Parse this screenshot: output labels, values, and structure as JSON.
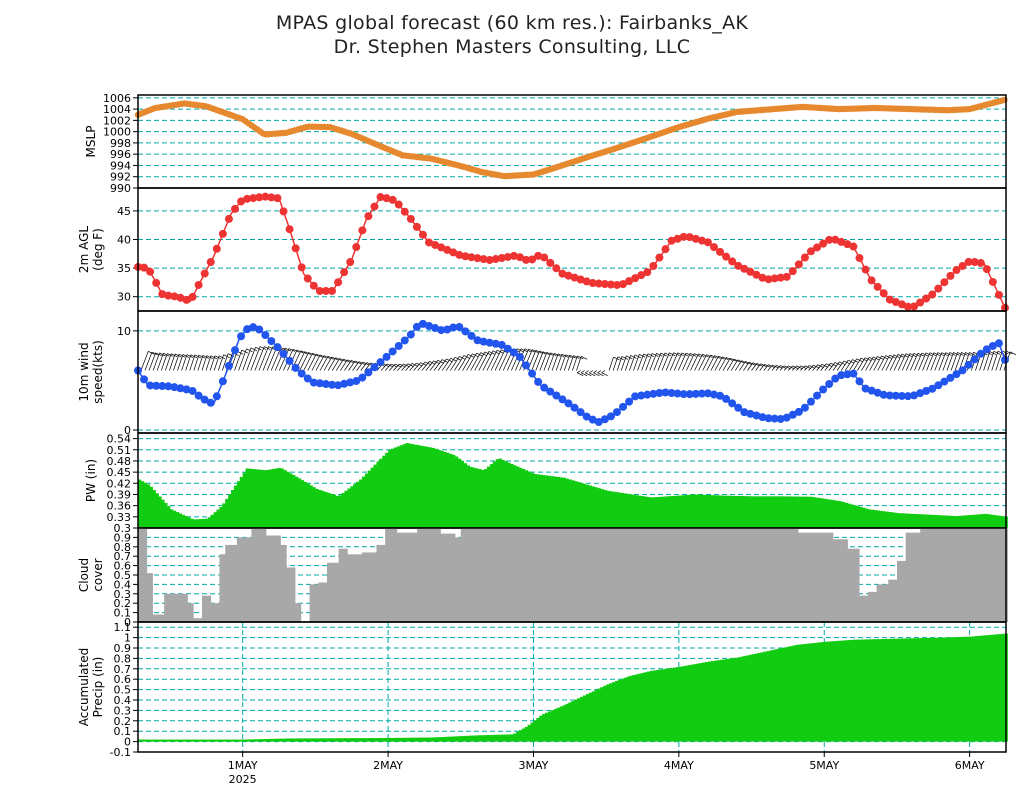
{
  "title": "MPAS global forecast (60 km res.): Fairbanks_AK",
  "subtitle": "Dr. Stephen Masters Consulting, LLC",
  "x_axis": {
    "ticks": [
      {
        "x": 1.0,
        "label": "1MAY",
        "sub": "2025"
      },
      {
        "x": 2.0,
        "label": "2MAY",
        "sub": ""
      },
      {
        "x": 3.0,
        "label": "3MAY",
        "sub": ""
      },
      {
        "x": 4.0,
        "label": "4MAY",
        "sub": ""
      },
      {
        "x": 5.0,
        "label": "5MAY",
        "sub": ""
      },
      {
        "x": 6.0,
        "label": "6MAY",
        "sub": ""
      }
    ],
    "xmin": 0.28,
    "xmax": 6.25
  },
  "colors": {
    "mslp": "#e6892e",
    "temp": "#ee3333",
    "wind": "#2255ee",
    "pw": "#11cc11",
    "cloud": "#a8a8a8",
    "precip": "#11cc11",
    "grid": "#00aaaa"
  },
  "chart_data": [
    {
      "panel": "mslp",
      "type": "line",
      "ylabel": [
        "MSLP"
      ],
      "ylim": [
        990,
        1006.5
      ],
      "yticks": [
        990,
        992,
        994,
        996,
        998,
        1000,
        1002,
        1004,
        1006
      ],
      "ytick_labels": [
        "990",
        "992",
        "994",
        "996",
        "998",
        "1000",
        "1002",
        "1004",
        "1006"
      ],
      "points": [
        [
          0.28,
          1003
        ],
        [
          0.4,
          1004.2
        ],
        [
          0.6,
          1005
        ],
        [
          0.75,
          1004.5
        ],
        [
          1.0,
          1002.2
        ],
        [
          1.15,
          999.5
        ],
        [
          1.3,
          999.8
        ],
        [
          1.45,
          1000.9
        ],
        [
          1.6,
          1000.8
        ],
        [
          1.75,
          999.6
        ],
        [
          1.95,
          997.4
        ],
        [
          2.1,
          995.8
        ],
        [
          2.3,
          995.2
        ],
        [
          2.5,
          993.9
        ],
        [
          2.65,
          992.8
        ],
        [
          2.8,
          992.1
        ],
        [
          3.0,
          992.4
        ],
        [
          3.15,
          993.6
        ],
        [
          3.35,
          995.3
        ],
        [
          3.55,
          996.9
        ],
        [
          3.75,
          998.6
        ],
        [
          4.0,
          1000.8
        ],
        [
          4.2,
          1002.3
        ],
        [
          4.4,
          1003.5
        ],
        [
          4.6,
          1003.9
        ],
        [
          4.85,
          1004.4
        ],
        [
          5.1,
          1004
        ],
        [
          5.35,
          1004.2
        ],
        [
          5.6,
          1004
        ],
        [
          5.85,
          1003.8
        ],
        [
          6.0,
          1004
        ],
        [
          6.25,
          1005.7
        ]
      ]
    },
    {
      "panel": "temp",
      "type": "line",
      "ylabel": [
        "2m AGL",
        "(deg F)"
      ],
      "ylim": [
        27.5,
        49
      ],
      "yticks": [
        30,
        35,
        40,
        45
      ],
      "ytick_labels": [
        "30",
        "35",
        "40",
        "45"
      ],
      "points": [
        [
          0.28,
          35.2
        ],
        [
          0.35,
          35
        ],
        [
          0.45,
          30.3
        ],
        [
          0.55,
          30
        ],
        [
          0.64,
          29.2
        ],
        [
          0.7,
          32.2
        ],
        [
          0.8,
          37
        ],
        [
          0.92,
          44.5
        ],
        [
          1.0,
          47
        ],
        [
          1.15,
          47.5
        ],
        [
          1.25,
          47.2
        ],
        [
          1.32,
          42
        ],
        [
          1.42,
          34
        ],
        [
          1.52,
          31
        ],
        [
          1.62,
          31
        ],
        [
          1.75,
          36.5
        ],
        [
          1.85,
          43.5
        ],
        [
          1.95,
          47.5
        ],
        [
          2.05,
          46.8
        ],
        [
          2.15,
          43.8
        ],
        [
          2.28,
          39.5
        ],
        [
          2.5,
          37.2
        ],
        [
          2.7,
          36.4
        ],
        [
          2.88,
          37.2
        ],
        [
          2.97,
          36.2
        ],
        [
          3.05,
          37.4
        ],
        [
          3.2,
          34
        ],
        [
          3.4,
          32.4
        ],
        [
          3.6,
          32
        ],
        [
          3.8,
          34.5
        ],
        [
          3.95,
          39.8
        ],
        [
          4.05,
          40.6
        ],
        [
          4.2,
          39.5
        ],
        [
          4.4,
          35.5
        ],
        [
          4.6,
          33
        ],
        [
          4.75,
          33.5
        ],
        [
          4.9,
          37.8
        ],
        [
          5.05,
          40.2
        ],
        [
          5.2,
          38.8
        ],
        [
          5.32,
          33
        ],
        [
          5.45,
          29.5
        ],
        [
          5.6,
          28
        ],
        [
          5.75,
          30.5
        ],
        [
          5.9,
          34.5
        ],
        [
          6.0,
          36.2
        ],
        [
          6.1,
          35.8
        ],
        [
          6.25,
          27.7
        ]
      ]
    },
    {
      "panel": "wind",
      "type": "line",
      "ylabel": [
        "10m wind",
        "speed(kts)"
      ],
      "ylim": [
        -0.3,
        12
      ],
      "yticks": [
        0,
        10
      ],
      "ytick_labels": [
        "0",
        "10"
      ],
      "points": [
        [
          0.28,
          6
        ],
        [
          0.35,
          4.5
        ],
        [
          0.5,
          4.4
        ],
        [
          0.65,
          4
        ],
        [
          0.72,
          3.2
        ],
        [
          0.8,
          2.6
        ],
        [
          0.88,
          5.5
        ],
        [
          0.98,
          9.3
        ],
        [
          1.05,
          10.5
        ],
        [
          1.12,
          10.1
        ],
        [
          1.25,
          8.2
        ],
        [
          1.38,
          6
        ],
        [
          1.48,
          4.8
        ],
        [
          1.65,
          4.5
        ],
        [
          1.8,
          5
        ],
        [
          2.0,
          7.5
        ],
        [
          2.15,
          9.5
        ],
        [
          2.22,
          10.8
        ],
        [
          2.3,
          10.4
        ],
        [
          2.38,
          10
        ],
        [
          2.48,
          10.5
        ],
        [
          2.62,
          9
        ],
        [
          2.78,
          8.6
        ],
        [
          2.9,
          7.5
        ],
        [
          3.05,
          4.5
        ],
        [
          3.25,
          2.6
        ],
        [
          3.38,
          1.2
        ],
        [
          3.45,
          0.8
        ],
        [
          3.55,
          1.5
        ],
        [
          3.7,
          3.4
        ],
        [
          3.9,
          3.8
        ],
        [
          4.05,
          3.6
        ],
        [
          4.2,
          3.7
        ],
        [
          4.3,
          3.4
        ],
        [
          4.45,
          1.8
        ],
        [
          4.6,
          1.2
        ],
        [
          4.72,
          1.1
        ],
        [
          4.85,
          2
        ],
        [
          5.0,
          4.2
        ],
        [
          5.1,
          5.5
        ],
        [
          5.2,
          5.7
        ],
        [
          5.28,
          4.2
        ],
        [
          5.42,
          3.5
        ],
        [
          5.6,
          3.4
        ],
        [
          5.75,
          4.2
        ],
        [
          5.95,
          6
        ],
        [
          6.1,
          8
        ],
        [
          6.2,
          8.8
        ],
        [
          6.25,
          6.8
        ]
      ]
    },
    {
      "panel": "pw",
      "type": "area",
      "ylabel": [
        "PW (in)"
      ],
      "ylim": [
        0.3,
        0.555
      ],
      "yticks": [
        0.3,
        0.33,
        0.36,
        0.39,
        0.42,
        0.45,
        0.48,
        0.51,
        0.54
      ],
      "ytick_labels": [
        "0.3",
        "0.33",
        "0.36",
        "0.39",
        "0.42",
        "0.45",
        "0.48",
        "0.51",
        "0.54"
      ],
      "points": [
        [
          0.28,
          0.43
        ],
        [
          0.35,
          0.415
        ],
        [
          0.5,
          0.35
        ],
        [
          0.65,
          0.323
        ],
        [
          0.75,
          0.325
        ],
        [
          0.85,
          0.36
        ],
        [
          0.95,
          0.42
        ],
        [
          1.02,
          0.46
        ],
        [
          1.15,
          0.455
        ],
        [
          1.25,
          0.462
        ],
        [
          1.35,
          0.44
        ],
        [
          1.5,
          0.405
        ],
        [
          1.65,
          0.385
        ],
        [
          1.8,
          0.43
        ],
        [
          2.0,
          0.51
        ],
        [
          2.12,
          0.528
        ],
        [
          2.3,
          0.515
        ],
        [
          2.45,
          0.495
        ],
        [
          2.55,
          0.465
        ],
        [
          2.65,
          0.455
        ],
        [
          2.75,
          0.488
        ],
        [
          2.85,
          0.47
        ],
        [
          3.0,
          0.445
        ],
        [
          3.2,
          0.435
        ],
        [
          3.5,
          0.4
        ],
        [
          3.8,
          0.382
        ],
        [
          4.1,
          0.39
        ],
        [
          4.3,
          0.387
        ],
        [
          4.5,
          0.385
        ],
        [
          4.7,
          0.385
        ],
        [
          4.9,
          0.384
        ],
        [
          5.1,
          0.372
        ],
        [
          5.3,
          0.35
        ],
        [
          5.5,
          0.34
        ],
        [
          5.7,
          0.336
        ],
        [
          5.9,
          0.332
        ],
        [
          6.1,
          0.338
        ],
        [
          6.25,
          0.33
        ]
      ]
    },
    {
      "panel": "cloud",
      "type": "bar",
      "ylabel": [
        "Cloud",
        "cover"
      ],
      "ylim": [
        0,
        1.0
      ],
      "yticks": [
        0,
        0.1,
        0.2,
        0.3,
        0.4,
        0.5,
        0.6,
        0.7,
        0.8,
        0.9
      ],
      "ytick_labels": [
        "0",
        "0.1",
        "0.2",
        "0.3",
        "0.4",
        "0.5",
        "0.6",
        "0.7",
        "0.8",
        "0.9"
      ],
      "points": [
        [
          0.28,
          1
        ],
        [
          0.33,
          0.52
        ],
        [
          0.38,
          0.08
        ],
        [
          0.45,
          0.3
        ],
        [
          0.55,
          0.3
        ],
        [
          0.62,
          0.2
        ],
        [
          0.66,
          0.04
        ],
        [
          0.72,
          0.28
        ],
        [
          0.78,
          0.2
        ],
        [
          0.83,
          0.72
        ],
        [
          0.88,
          0.82
        ],
        [
          0.95,
          0.9
        ],
        [
          1.05,
          1
        ],
        [
          1.15,
          0.92
        ],
        [
          1.25,
          0.82
        ],
        [
          1.3,
          0.58
        ],
        [
          1.35,
          0.2
        ],
        [
          1.4,
          0
        ],
        [
          1.45,
          0.4
        ],
        [
          1.52,
          0.42
        ],
        [
          1.58,
          0.63
        ],
        [
          1.65,
          0.78
        ],
        [
          1.72,
          0.72
        ],
        [
          1.82,
          0.74
        ],
        [
          1.92,
          0.82
        ],
        [
          1.97,
          1
        ],
        [
          2.05,
          0.95
        ],
        [
          2.2,
          1
        ],
        [
          2.35,
          0.94
        ],
        [
          2.45,
          0.9
        ],
        [
          2.5,
          1
        ],
        [
          2.7,
          1
        ],
        [
          3.2,
          1
        ],
        [
          4.0,
          1
        ],
        [
          4.8,
          0.95
        ],
        [
          5.05,
          0.88
        ],
        [
          5.15,
          0.78
        ],
        [
          5.22,
          0.28
        ],
        [
          5.28,
          0.32
        ],
        [
          5.35,
          0.4
        ],
        [
          5.42,
          0.45
        ],
        [
          5.48,
          0.65
        ],
        [
          5.55,
          0.95
        ],
        [
          5.65,
          1
        ],
        [
          6.25,
          1
        ]
      ]
    },
    {
      "panel": "precip",
      "type": "area",
      "ylabel": [
        "Accumulated",
        "Precip (in)"
      ],
      "ylim": [
        -0.1,
        1.15
      ],
      "yticks": [
        -0.1,
        0,
        0.1,
        0.2,
        0.3,
        0.4,
        0.5,
        0.6,
        0.7,
        0.8,
        0.9,
        1,
        1.1
      ],
      "ytick_labels": [
        "-0.1",
        "0",
        "0.1",
        "0.2",
        "0.3",
        "0.4",
        "0.5",
        "0.6",
        "0.7",
        "0.8",
        "0.9",
        "1",
        "1.1"
      ],
      "points": [
        [
          0.28,
          0.02
        ],
        [
          1.0,
          0.02
        ],
        [
          1.3,
          0.03
        ],
        [
          2.0,
          0.035
        ],
        [
          2.3,
          0.04
        ],
        [
          2.6,
          0.06
        ],
        [
          2.85,
          0.07
        ],
        [
          2.95,
          0.15
        ],
        [
          3.05,
          0.26
        ],
        [
          3.2,
          0.35
        ],
        [
          3.35,
          0.45
        ],
        [
          3.5,
          0.55
        ],
        [
          3.65,
          0.63
        ],
        [
          3.8,
          0.68
        ],
        [
          4.0,
          0.72
        ],
        [
          4.2,
          0.77
        ],
        [
          4.4,
          0.81
        ],
        [
          4.6,
          0.87
        ],
        [
          4.8,
          0.93
        ],
        [
          5.0,
          0.96
        ],
        [
          5.2,
          0.98
        ],
        [
          5.5,
          0.99
        ],
        [
          5.8,
          1.0
        ],
        [
          6.0,
          1.01
        ],
        [
          6.25,
          1.04
        ]
      ]
    }
  ]
}
